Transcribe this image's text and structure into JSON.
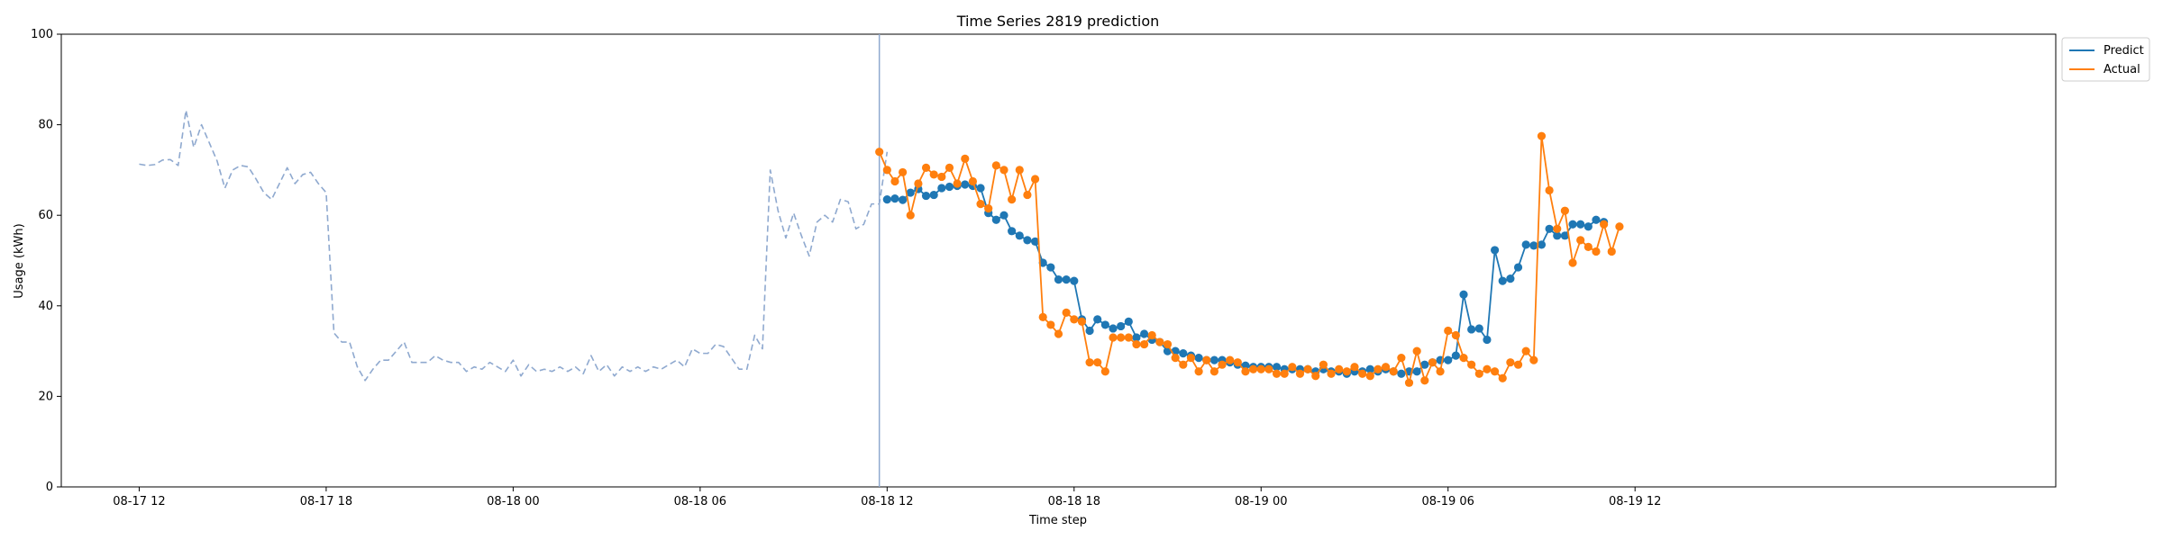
{
  "chart_data": {
    "type": "line",
    "title": "Time Series 2819 prediction",
    "xlabel": "Time step",
    "ylabel": "Usage (kWh)",
    "ylim": [
      0,
      100
    ],
    "xlim": [
      -10,
      246
    ],
    "time_step_hours": 0.25,
    "y_ticks": [
      0,
      20,
      40,
      60,
      80,
      100
    ],
    "x_ticks": [
      {
        "value": 0,
        "label": "08-17 12"
      },
      {
        "value": 24,
        "label": "08-17 18"
      },
      {
        "value": 48,
        "label": "08-18 00"
      },
      {
        "value": 72,
        "label": "08-18 06"
      },
      {
        "value": 96,
        "label": "08-18 12"
      },
      {
        "value": 120,
        "label": "08-18 18"
      },
      {
        "value": 144,
        "label": "08-19 00"
      },
      {
        "value": 168,
        "label": "08-19 06"
      },
      {
        "value": 192,
        "label": "08-19 12"
      }
    ],
    "forecast_start": 95,
    "legend": {
      "position": "top-right, outside plot",
      "entries": [
        "Predict",
        "Actual"
      ]
    },
    "colors": {
      "history": "#8fa9cf",
      "predict": "#1f77b4",
      "actual": "#ff7f0e",
      "divider": "#8fa9cf"
    },
    "series": [
      {
        "name": "History",
        "style": "dashed",
        "x_start": 0,
        "values": [
          71.3,
          71.0,
          71.2,
          72.2,
          72.3,
          71.0,
          83.2,
          75.0,
          80.0,
          76.0,
          72.0,
          66.0,
          70.0,
          71.0,
          70.7,
          68.0,
          65.0,
          63.5,
          67.0,
          70.5,
          67.0,
          69.0,
          69.5,
          67.0,
          65.0,
          34.0,
          32.0,
          32.0,
          26.5,
          23.5,
          26.0,
          28.0,
          28.0,
          30.0,
          32.0,
          27.5,
          27.5,
          27.5,
          29.0,
          28.0,
          27.5,
          27.5,
          25.5,
          26.5,
          26.0,
          27.5,
          26.5,
          25.5,
          28.0,
          24.5,
          27.0,
          25.5,
          26.0,
          25.5,
          26.5,
          25.5,
          26.5,
          25.0,
          29.0,
          25.5,
          27.0,
          24.5,
          26.5,
          25.5,
          26.5,
          25.5,
          26.5,
          26.0,
          27.0,
          28.0,
          26.5,
          30.5,
          29.5,
          29.5,
          31.5,
          31.0,
          28.5,
          26.0,
          26.0,
          33.5,
          30.5,
          70.0,
          61.0,
          55.0,
          60.5,
          55.5,
          51.0,
          58.5,
          60.0,
          58.5,
          63.5,
          63.0,
          57.0,
          58.0,
          62.5,
          62.5,
          74.0
        ]
      },
      {
        "name": "Predict",
        "style": "solid-markers",
        "x_start": 96,
        "values": [
          63.5,
          63.7,
          63.4,
          65.0,
          65.8,
          64.3,
          64.5,
          66.0,
          66.3,
          66.5,
          66.8,
          66.5,
          66.0,
          60.5,
          59.0,
          60.0,
          56.5,
          55.5,
          54.5,
          54.2,
          49.5,
          48.5,
          45.8,
          45.8,
          45.5,
          37.0,
          34.5,
          37.0,
          35.8,
          35.0,
          35.5,
          36.5,
          33.0,
          33.8,
          32.5,
          32.0,
          30.0,
          30.0,
          29.5,
          29.0,
          28.5,
          28.0,
          28.0,
          28.0,
          27.5,
          27.0,
          26.8,
          26.5,
          26.5,
          26.5,
          26.5,
          26.0,
          26.0,
          26.0,
          26.0,
          25.5,
          26.0,
          25.5,
          25.5,
          25.0,
          25.5,
          25.5,
          26.0,
          25.5,
          26.0,
          25.5,
          25.0,
          25.5,
          25.5,
          27.0,
          27.5,
          28.0,
          28.0,
          29.0,
          42.5,
          34.8,
          35.0,
          32.5,
          52.3,
          45.5,
          46.0,
          48.5,
          53.5,
          53.3,
          53.5,
          57.0,
          55.5,
          55.5,
          58.0,
          58.0,
          57.5,
          59.0,
          58.5
        ]
      },
      {
        "name": "Actual",
        "style": "solid-markers",
        "x_start": 95,
        "values": [
          74.0,
          70.0,
          67.5,
          69.5,
          60.0,
          67.0,
          70.5,
          69.0,
          68.5,
          70.5,
          67.0,
          72.5,
          67.5,
          62.5,
          61.5,
          71.0,
          70.0,
          63.5,
          70.0,
          64.5,
          68.0,
          37.5,
          35.8,
          33.8,
          38.5,
          37.0,
          36.5,
          27.5,
          27.5,
          25.5,
          33.0,
          33.0,
          33.0,
          31.5,
          31.5,
          33.5,
          32.0,
          31.5,
          28.5,
          27.0,
          28.5,
          25.5,
          28.0,
          25.5,
          27.0,
          28.0,
          27.5,
          25.5,
          26.0,
          26.0,
          26.0,
          25.0,
          25.0,
          26.5,
          25.0,
          26.0,
          24.5,
          27.0,
          25.0,
          26.0,
          25.5,
          26.5,
          25.0,
          24.5,
          26.0,
          26.5,
          25.5,
          28.5,
          23.0,
          30.0,
          23.5,
          27.5,
          25.5,
          34.5,
          33.5,
          28.5,
          27.0,
          25.0,
          26.0,
          25.5,
          24.0,
          27.5,
          27.0,
          30.0,
          28.0,
          77.5,
          65.5,
          57.0,
          61.0,
          49.5,
          54.5,
          53.0,
          52.0,
          58.0,
          52.0,
          57.5
        ]
      }
    ]
  }
}
